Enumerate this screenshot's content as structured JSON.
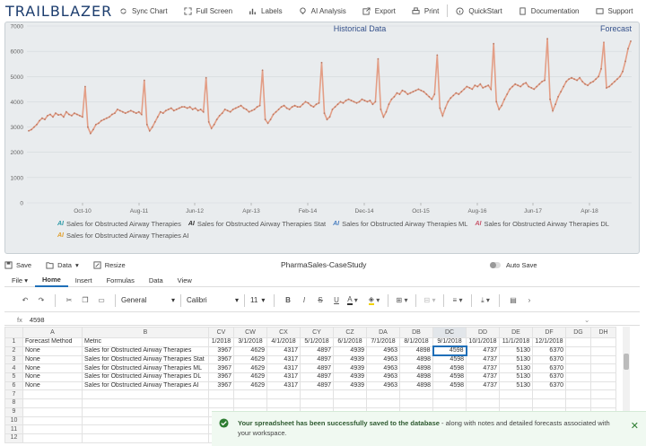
{
  "app": {
    "logo": "TRAILBLAZER",
    "toolbar": [
      "Sync Chart",
      "Full Screen",
      "Labels",
      "AI Analysis",
      "Export",
      "Print",
      "QuickStart",
      "Documentation",
      "Support"
    ]
  },
  "chart_data": {
    "type": "line",
    "title_left": "Historical Data",
    "title_right": "Forecast",
    "ylim": [
      0,
      7000
    ],
    "yticks": [
      "0",
      "1000",
      "2000",
      "3000",
      "4000",
      "5000",
      "6000",
      "7000"
    ],
    "xticks": [
      "Oct-10",
      "Aug-11",
      "Jun-12",
      "Apr-13",
      "Feb-14",
      "Dec-14",
      "Oct-15",
      "Aug-16",
      "Jun-17",
      "Apr-18"
    ],
    "line_color": "#e39e86",
    "values": [
      2850,
      2900,
      3000,
      3100,
      3250,
      3350,
      3300,
      3450,
      3500,
      3400,
      3550,
      3480,
      3500,
      3400,
      3600,
      3500,
      3450,
      3550,
      3500,
      3450,
      3400,
      4600,
      3000,
      2750,
      2900,
      3100,
      3150,
      3250,
      3300,
      3350,
      3400,
      3500,
      3550,
      3700,
      3650,
      3600,
      3550,
      3600,
      3650,
      3600,
      3550,
      3600,
      3500,
      4850,
      3100,
      2850,
      3000,
      3200,
      3400,
      3600,
      3550,
      3650,
      3700,
      3750,
      3650,
      3700,
      3750,
      3800,
      3800,
      3750,
      3800,
      3700,
      3750,
      3650,
      3700,
      3600,
      4950,
      3200,
      2950,
      3100,
      3300,
      3450,
      3550,
      3700,
      3650,
      3600,
      3700,
      3750,
      3800,
      3850,
      3750,
      3700,
      3600,
      3650,
      3700,
      3800,
      3850,
      5250,
      3300,
      3150,
      3300,
      3500,
      3600,
      3700,
      3800,
      3850,
      3750,
      3700,
      3800,
      3850,
      3800,
      3800,
      3900,
      4000,
      3950,
      3850,
      3800,
      3900,
      3950,
      5550,
      3550,
      3300,
      3400,
      3700,
      3800,
      3900,
      4000,
      3950,
      4050,
      4100,
      4050,
      4000,
      3950,
      4000,
      4100,
      4050,
      4000,
      4050,
      3900,
      4000,
      5700,
      3700,
      3400,
      3600,
      3900,
      4100,
      4200,
      4350,
      4300,
      4450,
      4400,
      4300,
      4350,
      4400,
      4450,
      4500,
      4450,
      4400,
      4300,
      4200,
      4100,
      4300,
      5850,
      3750,
      3450,
      3750,
      4000,
      4150,
      4250,
      4350,
      4300,
      4400,
      4500,
      4600,
      4550,
      4500,
      4650,
      4600,
      4700,
      4550,
      4600,
      4650,
      4500,
      6300,
      4000,
      3700,
      3850,
      4100,
      4300,
      4500,
      4600,
      4700,
      4650,
      4600,
      4700,
      4750,
      4600,
      4550,
      4500,
      4600,
      4700,
      4800,
      4850,
      6500,
      4100,
      3650,
      3900,
      4200,
      4400,
      4600,
      4800,
      4900,
      4950,
      4900,
      4850,
      4950,
      4800,
      4700,
      4650,
      4750,
      4800,
      4900,
      5000,
      5300,
      6350
    ],
    "forecast_values": [
      4550,
      4600,
      4700,
      4800,
      4900,
      5000,
      5200,
      5600,
      6100,
      6400
    ]
  },
  "legend": [
    "Sales for Obstructed Airway Therapies",
    "Sales for Obstructed Airway Therapies Stat",
    "Sales for Obstructed Airway Therapies ML",
    "Sales for Obstructed Airway Therapies DL",
    "Sales for Obstructed Airway Therapies AI"
  ],
  "legend_colors": [
    "#2f9ba8",
    "#333333",
    "#4a7fc1",
    "#c8556a",
    "#e0a030"
  ],
  "legend_icon": "AI",
  "filebar": {
    "save": "Save",
    "data": "Data",
    "resize": "Resize",
    "title": "PharmaSales-CaseStudy",
    "autosave": "Auto Save"
  },
  "menu": [
    "File",
    "Home",
    "Insert",
    "Formulas",
    "Data",
    "View"
  ],
  "ribbon": {
    "format": "General",
    "font": "Calibri",
    "size": "11"
  },
  "formula": {
    "fx": "fx",
    "value": "4598"
  },
  "sheet": {
    "columns": [
      "A",
      "B",
      "CV",
      "CW",
      "CX",
      "CY",
      "CZ",
      "DA",
      "DB",
      "DC",
      "DD",
      "DE",
      "DF",
      "DG",
      "DH"
    ],
    "rows": [
      [
        "1",
        "Forecast Method",
        "Metric",
        "1/2018",
        "3/1/2018",
        "4/1/2018",
        "5/1/2018",
        "6/1/2018",
        "7/1/2018",
        "8/1/2018",
        "9/1/2018",
        "10/1/2018",
        "11/1/2018",
        "12/1/2018",
        "",
        ""
      ],
      [
        "2",
        "None",
        "Sales for Obstructed Airway Therapies",
        "3967",
        "4629",
        "4317",
        "4897",
        "4939",
        "4963",
        "4898",
        "4598",
        "4737",
        "5130",
        "6370",
        "",
        ""
      ],
      [
        "3",
        "None",
        "Sales for Obstructed Airway Therapies Stat",
        "3967",
        "4629",
        "4317",
        "4897",
        "4939",
        "4963",
        "4898",
        "4598",
        "4737",
        "5130",
        "6370",
        "",
        ""
      ],
      [
        "4",
        "None",
        "Sales for Obstructed Airway Therapies ML",
        "3967",
        "4629",
        "4317",
        "4897",
        "4939",
        "4963",
        "4898",
        "4598",
        "4737",
        "5130",
        "6370",
        "",
        ""
      ],
      [
        "5",
        "None",
        "Sales for Obstructed Airway Therapies DL",
        "3967",
        "4629",
        "4317",
        "4897",
        "4939",
        "4963",
        "4898",
        "4598",
        "4737",
        "5130",
        "6370",
        "",
        ""
      ],
      [
        "6",
        "None",
        "Sales for Obstructed Airway Therapies AI",
        "3967",
        "4629",
        "4317",
        "4897",
        "4939",
        "4963",
        "4898",
        "4598",
        "4737",
        "5130",
        "6370",
        "",
        ""
      ],
      [
        "7",
        "",
        "",
        "",
        "",
        "",
        "",
        "",
        "",
        "",
        "",
        "",
        "",
        "",
        "",
        ""
      ],
      [
        "8",
        "",
        "",
        "",
        "",
        "",
        "",
        "",
        "",
        "",
        "",
        "",
        "",
        "",
        "",
        ""
      ],
      [
        "9",
        "",
        "",
        "",
        "",
        "",
        "",
        "",
        "",
        "",
        "",
        "",
        "",
        "",
        "",
        ""
      ],
      [
        "10",
        "",
        "",
        "",
        "",
        "",
        "",
        "",
        "",
        "",
        "",
        "",
        "",
        "",
        "",
        ""
      ],
      [
        "11",
        "",
        "",
        "",
        "",
        "",
        "",
        "",
        "",
        "",
        "",
        "",
        "",
        "",
        "",
        ""
      ],
      [
        "12",
        "",
        "",
        "",
        "",
        "",
        "",
        "",
        "",
        "",
        "",
        "",
        "",
        "",
        "",
        ""
      ]
    ]
  },
  "toast": {
    "bold": "Your spreadsheet has been successfully saved to the database",
    "rest": " - along with notes and detailed forecasts associated with your workspace.",
    "close": "✕"
  }
}
